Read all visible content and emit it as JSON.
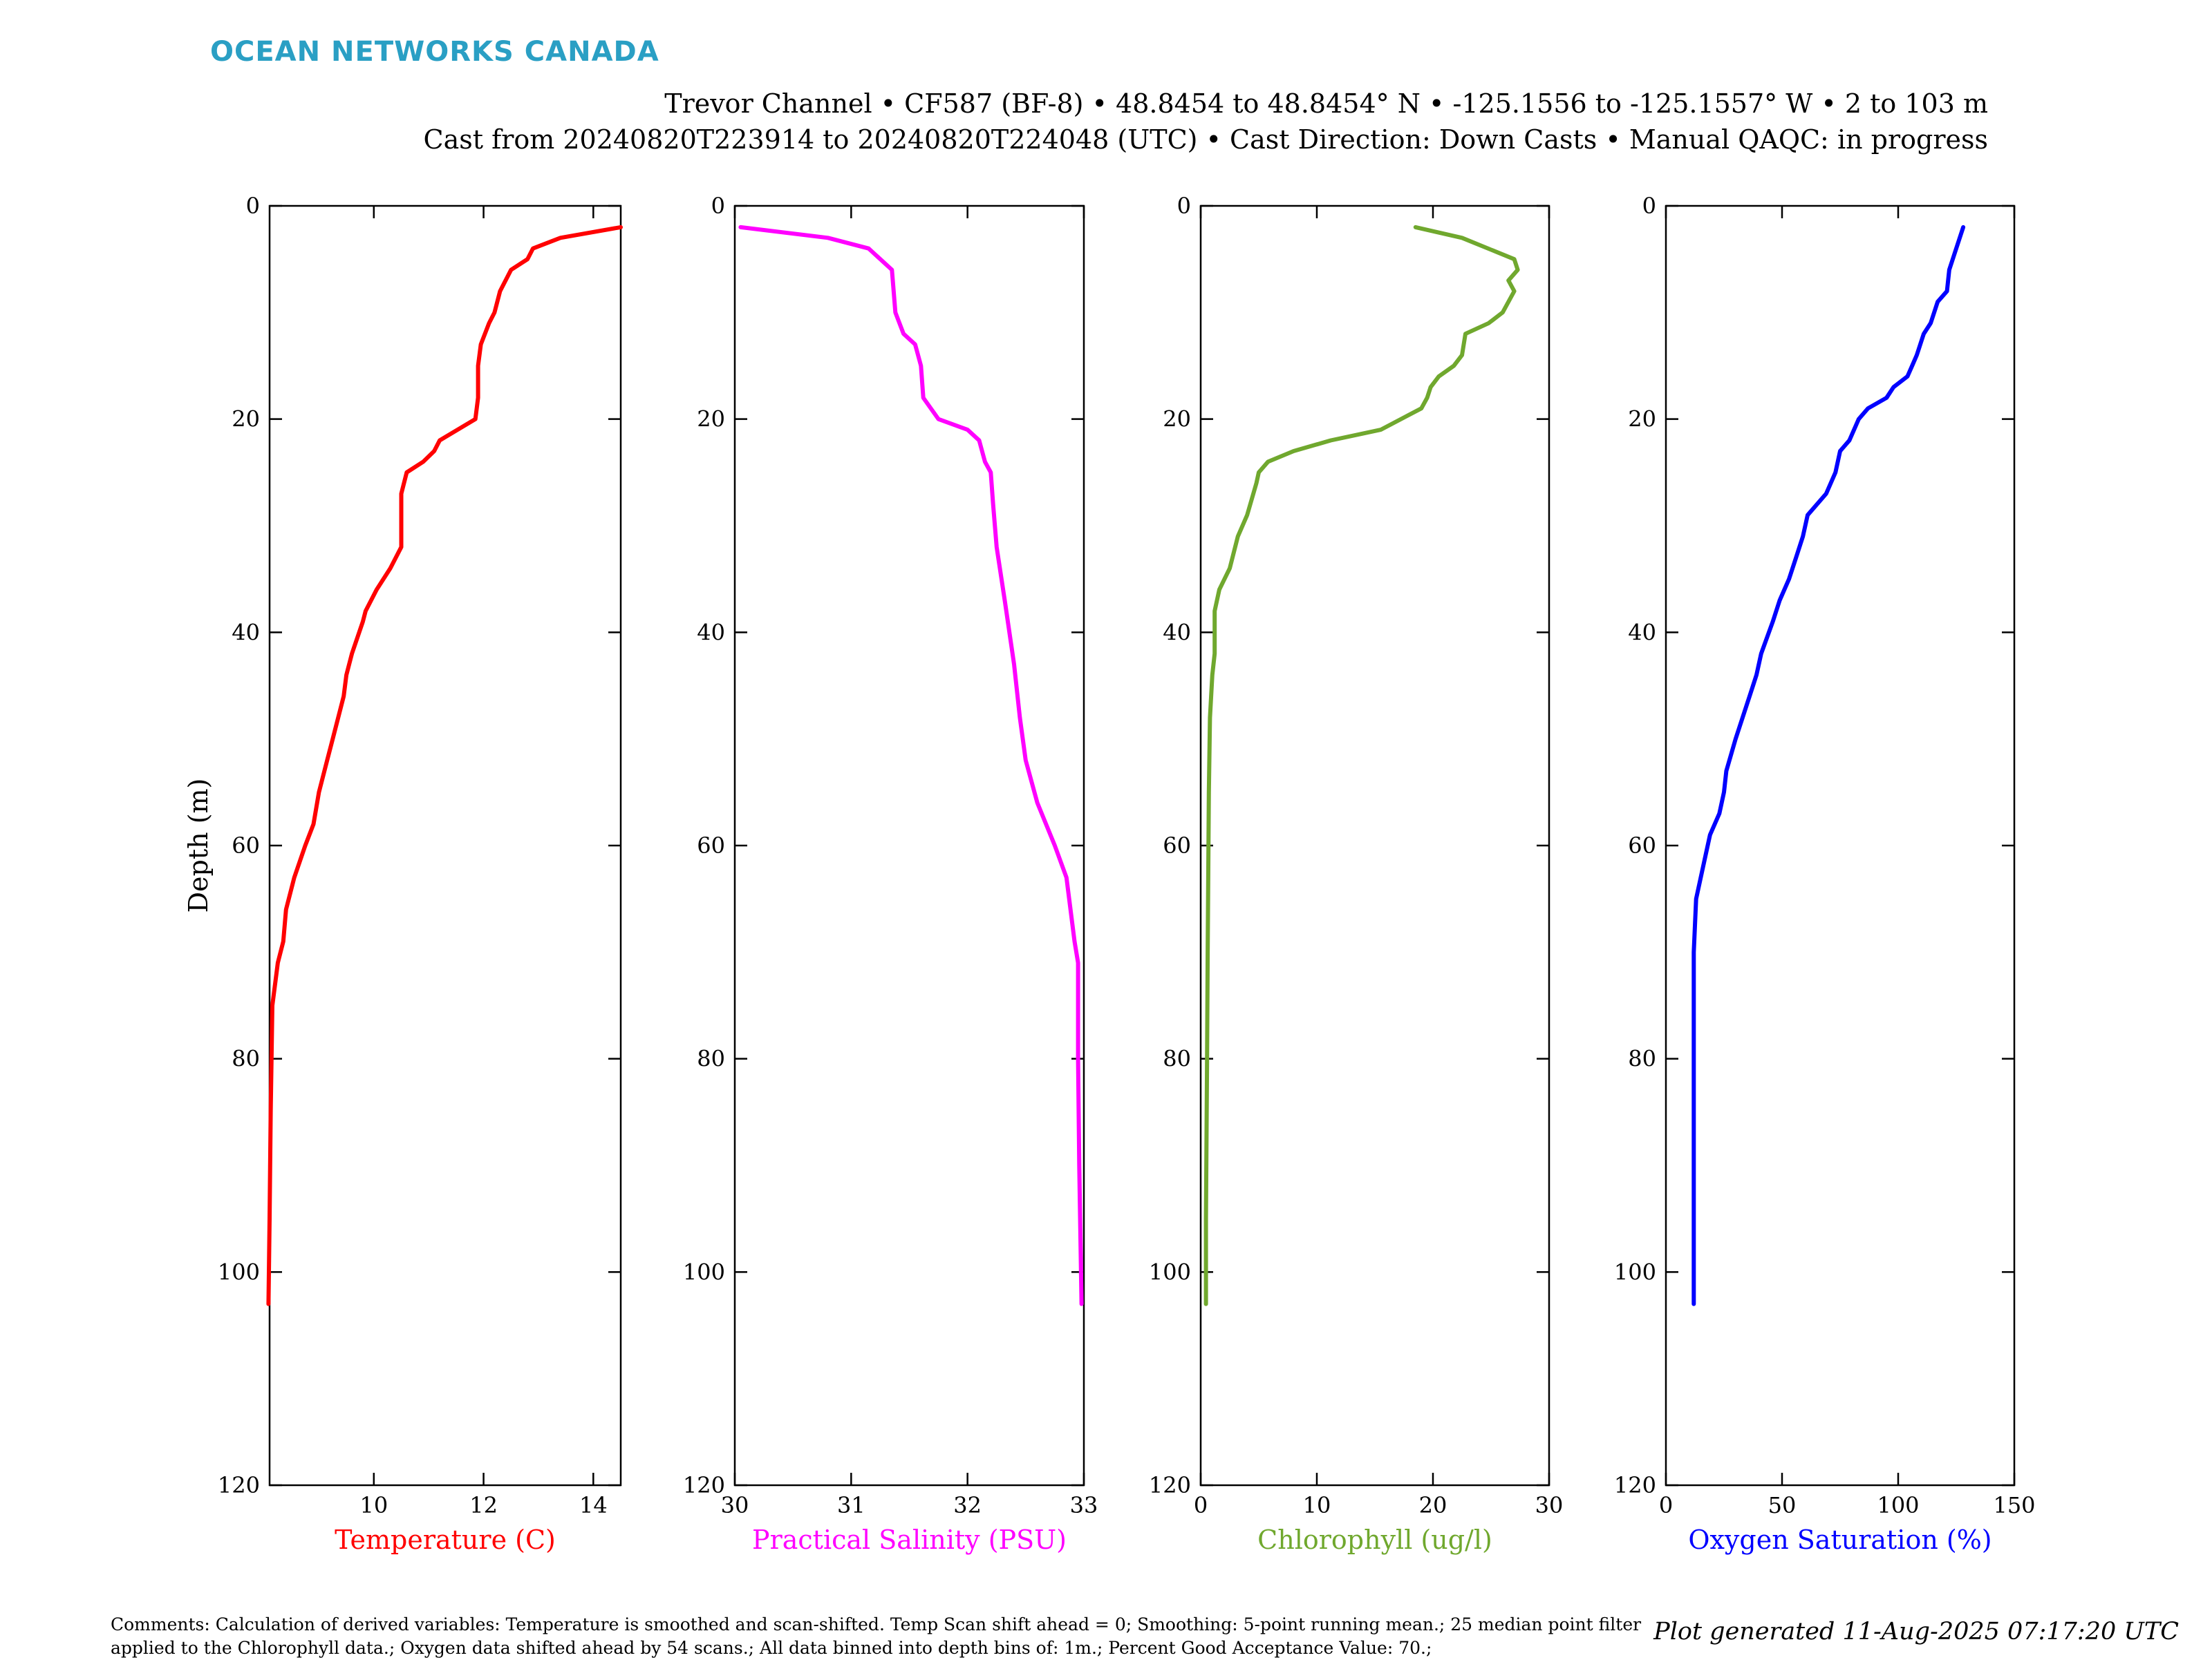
{
  "header": {
    "logo": "OCEAN NETWORKS CANADA",
    "line1": "Trevor Channel • CF587 (BF-8) • 48.8454 to 48.8454° N • -125.1556 to -125.1557° W • 2 to 103 m",
    "line2": "Cast from 20240820T223914 to 20240820T224048 (UTC) • Cast Direction: Down Casts • Manual QAQC: in progress"
  },
  "footer": {
    "comments": "Comments: Calculation of derived variables: Temperature is smoothed and scan-shifted. Temp Scan shift ahead = 0; Smoothing: 5-point running mean.; 25 median point filter applied to the Chlorophyll data.; Oxygen data shifted ahead by 54 scans.; All data binned into depth bins of: 1m.; Percent Good Acceptance Value: 70.;",
    "generated": "Plot generated 11-Aug-2025 07:17:20 UTC"
  },
  "chart_data": [
    {
      "type": "line",
      "xlabel": "Temperature (C)",
      "ylabel": "Depth (m)",
      "color": "#ff0000",
      "xlim": [
        8.1,
        14.5
      ],
      "ylim": [
        0,
        120
      ],
      "y_reversed": true,
      "xticks": [
        10,
        12,
        14
      ],
      "yticks": [
        0,
        20,
        40,
        60,
        80,
        100,
        120
      ],
      "x": [
        14.5,
        13.4,
        12.9,
        12.8,
        12.5,
        12.3,
        12.2,
        12.1,
        11.95,
        11.9,
        11.9,
        11.85,
        11.2,
        11.1,
        10.9,
        10.6,
        10.5,
        10.5,
        10.5,
        10.3,
        10.05,
        9.85,
        9.8,
        9.6,
        9.5,
        9.45,
        9.25,
        9.15,
        9.0,
        8.9,
        8.75,
        8.55,
        8.4,
        8.35,
        8.25,
        8.15,
        8.12,
        8.1,
        8.08
      ],
      "y": [
        2,
        3,
        4,
        5,
        6,
        8,
        10,
        11,
        13,
        15,
        18,
        20,
        22,
        23,
        24,
        25,
        27,
        30,
        32,
        34,
        36,
        38,
        39,
        42,
        44,
        46,
        50,
        52,
        55,
        58,
        60,
        63,
        66,
        69,
        71,
        75,
        85,
        95,
        103
      ]
    },
    {
      "type": "line",
      "xlabel": "Practical Salinity (PSU)",
      "color": "#ff00ff",
      "xlim": [
        30,
        33
      ],
      "ylim": [
        0,
        120
      ],
      "y_reversed": true,
      "xticks": [
        30,
        31,
        32,
        33
      ],
      "yticks": [
        0,
        20,
        40,
        60,
        80,
        100,
        120
      ],
      "x": [
        30.05,
        30.8,
        31.15,
        31.35,
        31.38,
        31.45,
        31.55,
        31.6,
        31.62,
        31.75,
        32.0,
        32.1,
        32.15,
        32.2,
        32.22,
        32.25,
        32.32,
        32.4,
        32.45,
        32.5,
        32.6,
        32.75,
        32.85,
        32.92,
        32.95,
        32.95,
        32.96,
        32.98
      ],
      "y": [
        2,
        3,
        4,
        6,
        10,
        12,
        13,
        15,
        18,
        20,
        21,
        22,
        24,
        25,
        28,
        32,
        37,
        43,
        48,
        52,
        56,
        60,
        63,
        69,
        71,
        80,
        90,
        103
      ]
    },
    {
      "type": "line",
      "xlabel": "Chlorophyll (ug/l)",
      "color": "#70a82e",
      "xlim": [
        0,
        30
      ],
      "ylim": [
        0,
        120
      ],
      "y_reversed": true,
      "xticks": [
        0,
        10,
        20,
        30
      ],
      "yticks": [
        0,
        20,
        40,
        60,
        80,
        100,
        120
      ],
      "x": [
        18.5,
        22.5,
        27,
        27.3,
        26.5,
        27,
        26,
        24.8,
        22.8,
        22.5,
        21.8,
        20.5,
        19.8,
        19.5,
        19,
        15.5,
        11.2,
        8,
        5.8,
        5,
        4.8,
        4,
        3.2,
        2.5,
        1.6,
        1.2,
        1.2,
        1.0,
        0.8,
        0.7,
        0.6,
        0.55,
        0.45,
        0.45
      ],
      "y": [
        2,
        3,
        5,
        6,
        7,
        8,
        10,
        11,
        12,
        14,
        15,
        16,
        17,
        18,
        19,
        21,
        22,
        23,
        24,
        25,
        26,
        29,
        31,
        34,
        36,
        38,
        42,
        44,
        48,
        55,
        70,
        80,
        95,
        103
      ]
    },
    {
      "type": "line",
      "xlabel": "Oxygen Saturation (%)",
      "color": "#0000ff",
      "xlim": [
        0,
        150
      ],
      "ylim": [
        0,
        120
      ],
      "y_reversed": true,
      "xticks": [
        0,
        50,
        100,
        150
      ],
      "yticks": [
        0,
        20,
        40,
        60,
        80,
        100,
        120
      ],
      "x": [
        128,
        125,
        122,
        121,
        117,
        114,
        111,
        108,
        106,
        104,
        98,
        95,
        87,
        83,
        79,
        75,
        73,
        69,
        61,
        59,
        56,
        53,
        49,
        46,
        41,
        39,
        36,
        33,
        30,
        26,
        25,
        23,
        19,
        17,
        15,
        13,
        12,
        12,
        12,
        12
      ],
      "y": [
        2,
        4,
        6,
        8,
        9,
        11,
        12,
        14,
        15,
        16,
        17,
        18,
        19,
        20,
        22,
        23,
        25,
        27,
        29,
        31,
        33,
        35,
        37,
        39,
        42,
        44,
        46,
        48,
        50,
        53,
        55,
        57,
        59,
        61,
        63,
        65,
        70,
        80,
        90,
        103
      ]
    }
  ]
}
